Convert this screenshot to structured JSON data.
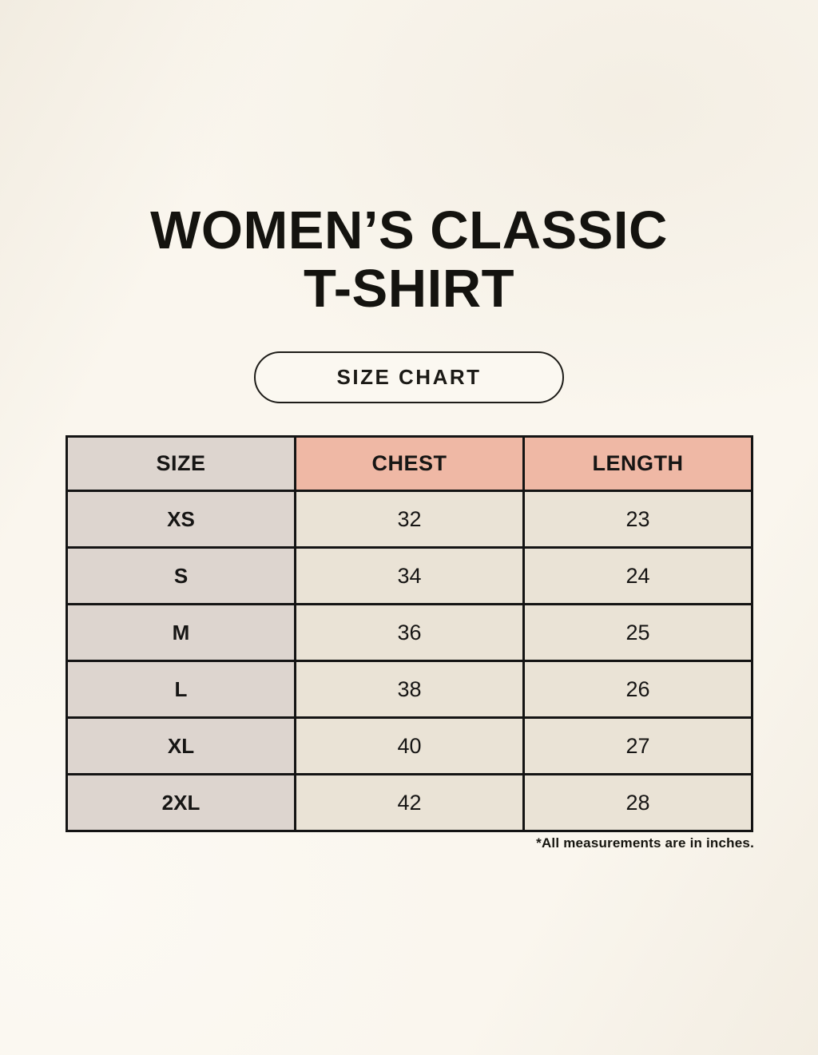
{
  "page": {
    "background_color": "#faf6ee"
  },
  "title": {
    "line1": "WOMEN’S CLASSIC",
    "line2": "T-SHIRT"
  },
  "size_chart_button": {
    "label": "SIZE CHART"
  },
  "table": {
    "headers": [
      "SIZE",
      "CHEST",
      "LENGTH"
    ],
    "rows": [
      {
        "size": "XS",
        "chest": "32",
        "length": "23"
      },
      {
        "size": "S",
        "chest": "34",
        "length": "24"
      },
      {
        "size": "M",
        "chest": "36",
        "length": "25"
      },
      {
        "size": "L",
        "chest": "38",
        "length": "26"
      },
      {
        "size": "XL",
        "chest": "40",
        "length": "27"
      },
      {
        "size": "2XL",
        "chest": "42",
        "length": "28"
      }
    ],
    "footnote": "*All measurements are in inches.",
    "colors": {
      "size_column_bg": "#ddd5cf",
      "measure_header_bg": "#efb8a5",
      "data_cell_bg": "#eae3d6",
      "border": "#141414",
      "text": "#161514"
    }
  }
}
